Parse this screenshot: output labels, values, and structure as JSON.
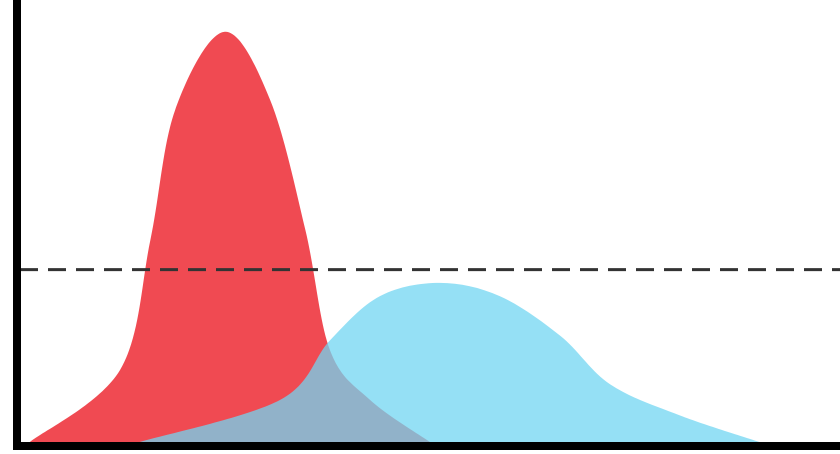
{
  "chart_data": {
    "type": "area",
    "xlim": [
      0,
      100
    ],
    "ylim": [
      0,
      100
    ],
    "series": [
      {
        "color": "#f04a52",
        "opacity": 1,
        "x": [
          1.2,
          12.2,
          15.9,
          18.9,
          24.9,
          30.5,
          34.8,
          37.8,
          42.7,
          50
        ],
        "values": [
          0,
          16.3,
          45.7,
          75,
          92.8,
          77.4,
          48,
          20.8,
          9.5,
          0
        ]
      },
      {
        "color": "#71d5f2",
        "opacity": 0.75,
        "x": [
          14.6,
          31.7,
          37.8,
          43.9,
          51.2,
          58.5,
          65.9,
          72,
          80.5,
          90.2
        ],
        "values": [
          0,
          9.5,
          23,
          33,
          36,
          33,
          24,
          13,
          6,
          0
        ]
      }
    ],
    "hline": 39
  }
}
